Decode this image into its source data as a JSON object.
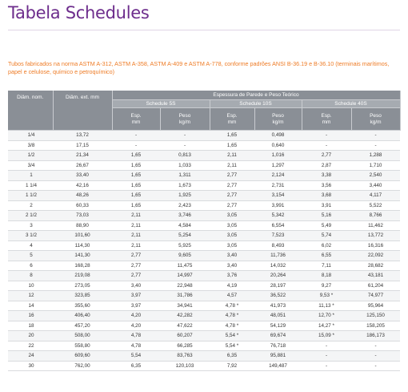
{
  "title": "Tabela Schedules",
  "description": "Tubos fabricados na norma ASTM A-312, ASTM A-358, ASTM A-409 e ASTM A-778, conforme padrões ANSI B-36.19 e B-36.10 (terminais marítimos, papel e celulose, químico e petroquímico)",
  "table": {
    "col_diam_nom": "Diâm. nom.",
    "col_diam_ext": "Diâm. ext. mm",
    "group_header": "Espessura de Parede e Peso Teórico",
    "schedules": [
      "Schedule 5S",
      "Schedule 10S",
      "Schedule 40S"
    ],
    "esp_label": "Esp. mm",
    "peso_label": "Peso kg/m",
    "rows": [
      [
        "1/4",
        "13,72",
        "-",
        "-",
        "1,65",
        "0,498",
        "-",
        "-"
      ],
      [
        "3/8",
        "17,15",
        "-",
        "-",
        "1,65",
        "0,640",
        "-",
        "-"
      ],
      [
        "1/2",
        "21,34",
        "1,65",
        "0,813",
        "2,11",
        "1,016",
        "2,77",
        "1,288"
      ],
      [
        "3/4",
        "26,67",
        "1,65",
        "1,033",
        "2,11",
        "1,297",
        "2,87",
        "1,710"
      ],
      [
        "1",
        "33,40",
        "1,65",
        "1,311",
        "2,77",
        "2,124",
        "3,38",
        "2,540"
      ],
      [
        "1 1/4",
        "42,16",
        "1,65",
        "1,673",
        "2,77",
        "2,731",
        "3,56",
        "3,440"
      ],
      [
        "1 1/2",
        "48,26",
        "1,65",
        "1,925",
        "2,77",
        "3,154",
        "3,68",
        "4,117"
      ],
      [
        "2",
        "60,33",
        "1,65",
        "2,423",
        "2,77",
        "3,991",
        "3,91",
        "5,522"
      ],
      [
        "2 1/2",
        "73,03",
        "2,11",
        "3,746",
        "3,05",
        "5,342",
        "5,16",
        "8,766"
      ],
      [
        "3",
        "88,90",
        "2,11",
        "4,584",
        "3,05",
        "6,554",
        "5,49",
        "11,462"
      ],
      [
        "3 1/2",
        "101,60",
        "2,11",
        "5,254",
        "3,05",
        "7,523",
        "5,74",
        "13,772"
      ],
      [
        "4",
        "114,30",
        "2,11",
        "5,925",
        "3,05",
        "8,493",
        "6,02",
        "16,316"
      ],
      [
        "5",
        "141,30",
        "2,77",
        "9,605",
        "3,40",
        "11,736",
        "6,55",
        "22,092"
      ],
      [
        "6",
        "168,28",
        "2,77",
        "11,475",
        "3,40",
        "14,032",
        "7,11",
        "28,682"
      ],
      [
        "8",
        "219,08",
        "2,77",
        "14,997",
        "3,76",
        "20,264",
        "8,18",
        "43,181"
      ],
      [
        "10",
        "273,05",
        "3,40",
        "22,948",
        "4,19",
        "28,197",
        "9,27",
        "61,204"
      ],
      [
        "12",
        "323,85",
        "3,97",
        "31,786",
        "4,57",
        "36,522",
        "9,53 *",
        "74,977"
      ],
      [
        "14",
        "355,60",
        "3,97",
        "34,941",
        "4,78 *",
        "41,973",
        "11,13 *",
        "95,964"
      ],
      [
        "16",
        "406,40",
        "4,20",
        "42,282",
        "4,78 *",
        "48,051",
        "12,70 *",
        "125,150"
      ],
      [
        "18",
        "457,20",
        "4,20",
        "47,622",
        "4,78 *",
        "54,129",
        "14,27 *",
        "158,205"
      ],
      [
        "20",
        "508,00",
        "4,78",
        "60,207",
        "5,54 *",
        "69,674",
        "15,09 *",
        "186,173"
      ],
      [
        "22",
        "558,80",
        "4,78",
        "66,285",
        "5,54 *",
        "76,718",
        "-",
        "-"
      ],
      [
        "24",
        "609,60",
        "5,54",
        "83,763",
        "6,35",
        "95,881",
        "-",
        "-"
      ],
      [
        "30",
        "762,00",
        "6,35",
        "120,103",
        "7,92",
        "149,487",
        "-",
        "-"
      ]
    ]
  },
  "colors": {
    "title": "#6d2d8c",
    "description": "#ee7b25",
    "header_bg": "#8a8f96",
    "header_sub_bg": "#a6abb1",
    "row_alt": "#f4f5f6"
  }
}
